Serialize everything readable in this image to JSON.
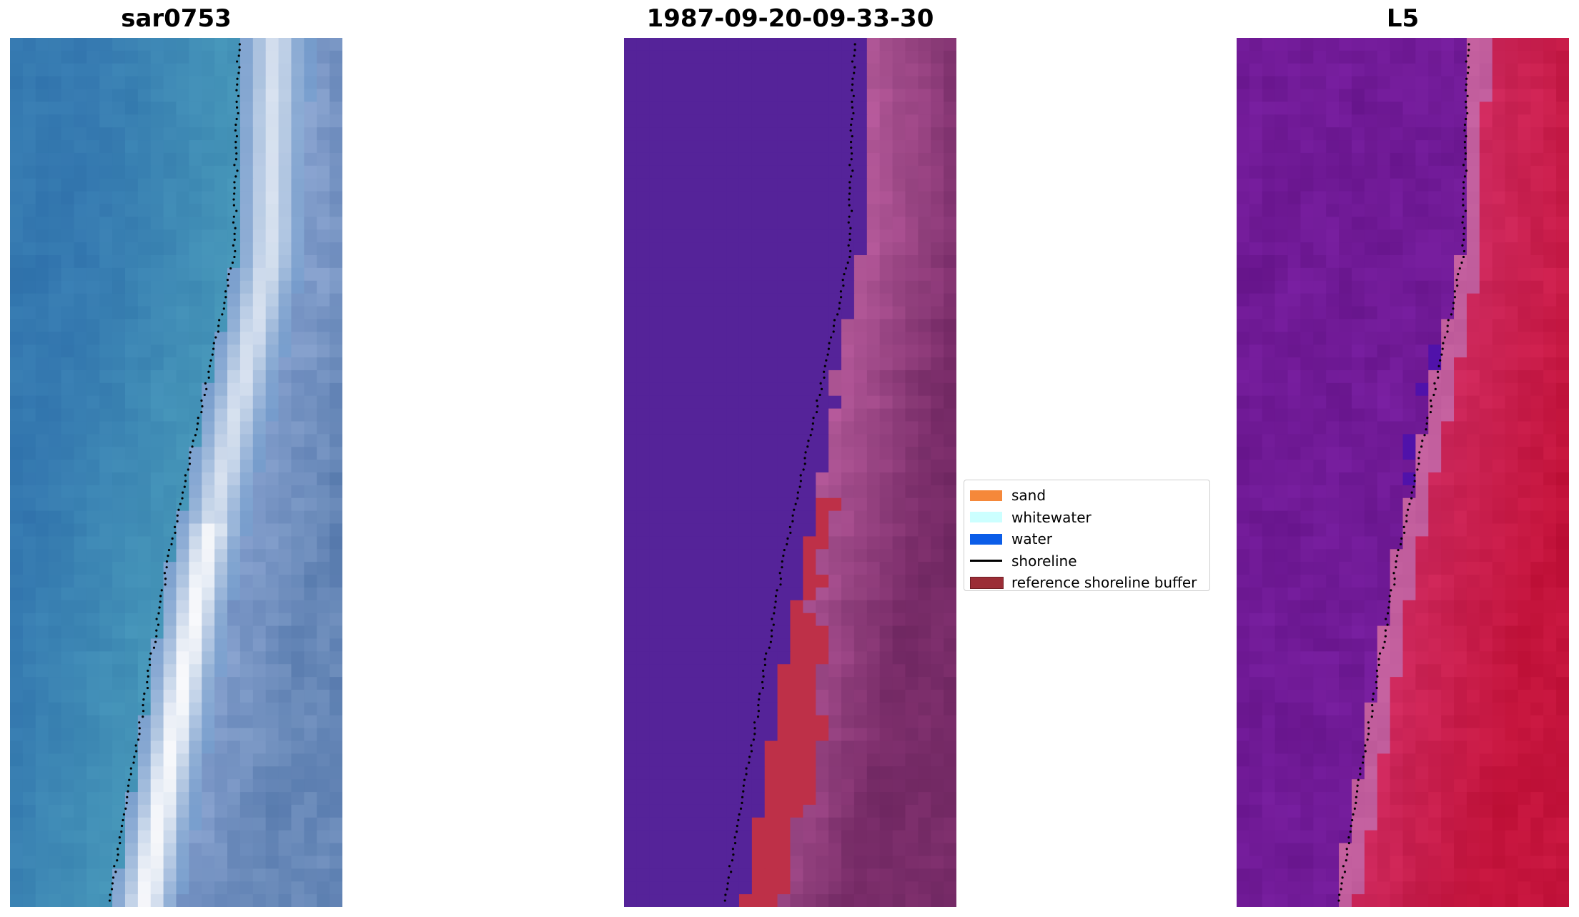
{
  "panels": [
    {
      "title": "sar0753",
      "colormap": "rgb"
    },
    {
      "title": "1987-09-20-09-33-30",
      "colormap": "classified"
    },
    {
      "title": "L5",
      "colormap": "mndwi"
    }
  ],
  "legend": {
    "items": [
      {
        "label": "sand",
        "kind": "patch",
        "color": "#f5883a"
      },
      {
        "label": "whitewater",
        "kind": "patch",
        "color": "#ccffff"
      },
      {
        "label": "water",
        "kind": "patch",
        "color": "#0b5de8"
      },
      {
        "label": "shoreline",
        "kind": "line",
        "color": "#000000"
      },
      {
        "label": "reference shoreline buffer",
        "kind": "patch",
        "color": "#9b2d36"
      }
    ]
  },
  "colors": {
    "deep_water_purple": "#552399",
    "buffer_red": "#be3048",
    "land_mauve": "#a05a92",
    "mndwi_water": "#7a1c9e",
    "mndwi_land": "#c2184a"
  }
}
